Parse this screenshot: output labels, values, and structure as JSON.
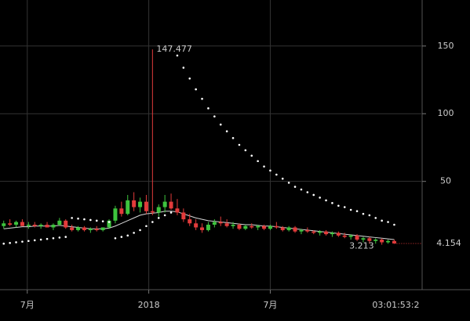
{
  "chart_data": {
    "type": "candlestick",
    "open": [
      17,
      19,
      18,
      20,
      17,
      18,
      17,
      18,
      16,
      18,
      21,
      16,
      14,
      16,
      14,
      15,
      14,
      16,
      21,
      30,
      26,
      36,
      31,
      35,
      28,
      27,
      31,
      35,
      30,
      27,
      22,
      19,
      16,
      14,
      18,
      20,
      19,
      17,
      18,
      15,
      17,
      16,
      17,
      15,
      17,
      16,
      14,
      16,
      13,
      14,
      13,
      12,
      13,
      11,
      12,
      10,
      9,
      10,
      7,
      8,
      6,
      7,
      5,
      6
    ],
    "high": [
      21,
      22,
      21,
      22,
      20,
      20,
      19,
      20,
      19,
      23,
      22,
      18,
      17,
      17,
      16,
      17,
      16,
      22,
      32,
      35,
      40,
      42,
      38,
      40,
      147.477,
      33,
      40,
      41,
      37,
      30,
      26,
      22,
      19,
      20,
      22,
      24,
      22,
      20,
      19,
      18,
      19,
      18,
      18,
      18,
      20,
      17,
      17,
      17,
      15,
      16,
      14,
      14,
      14,
      13,
      13,
      12,
      11,
      11,
      9,
      9,
      8,
      8,
      7,
      7
    ],
    "low": [
      15,
      17,
      16,
      17,
      15,
      16,
      15,
      16,
      14,
      17,
      15,
      13,
      13,
      13,
      12,
      13,
      13,
      15,
      19,
      24,
      25,
      28,
      27,
      26,
      25,
      24,
      27,
      29,
      25,
      20,
      17,
      14,
      12,
      13,
      16,
      17,
      16,
      15,
      14,
      14,
      15,
      14,
      14,
      14,
      15,
      13,
      13,
      12,
      11,
      12,
      11,
      10,
      10,
      9,
      9,
      8,
      7,
      6,
      5,
      4,
      4,
      3.213,
      4,
      4
    ],
    "close": [
      19,
      18,
      20,
      17,
      18,
      17,
      18,
      16,
      18,
      21,
      16,
      14,
      16,
      14,
      15,
      14,
      16,
      21,
      30,
      26,
      36,
      31,
      35,
      28,
      27,
      31,
      35,
      30,
      27,
      22,
      19,
      16,
      14,
      18,
      20,
      19,
      17,
      18,
      15,
      17,
      16,
      17,
      15,
      17,
      16,
      14,
      16,
      13,
      14,
      13,
      12,
      13,
      11,
      12,
      10,
      9,
      10,
      7,
      8,
      6,
      7,
      5,
      6,
      4.154
    ],
    "up_color": "#3ec43e",
    "down_color": "#e23b3b",
    "ma": {
      "color": "#d8d8d8",
      "values": [
        15,
        15.5,
        16,
        16.5,
        16.5,
        17,
        17,
        17,
        17,
        17.5,
        17,
        16.5,
        16,
        15.5,
        15,
        15,
        15,
        15.5,
        17,
        19,
        21,
        23,
        25,
        26,
        26.5,
        27,
        28,
        28,
        27.5,
        26,
        24.5,
        23,
        22,
        21,
        20.5,
        20,
        19.5,
        19,
        18.5,
        18,
        18,
        17.5,
        17,
        17,
        16.5,
        16,
        15.5,
        15,
        14.5,
        14,
        13.5,
        13,
        12.5,
        12,
        11.5,
        11,
        10.5,
        10,
        9.5,
        9,
        8.5,
        8,
        7.5,
        7
      ]
    },
    "sar": {
      "color": "#ffffff",
      "values": [
        4,
        4.5,
        5,
        5.5,
        6,
        6.5,
        7,
        7.5,
        8,
        8.5,
        9,
        23,
        22.5,
        22,
        21.5,
        21,
        20.5,
        20,
        8,
        9,
        10,
        12,
        14,
        17,
        20,
        23,
        25,
        27,
        143,
        134,
        126,
        118,
        111,
        104,
        98,
        92,
        87,
        82,
        77,
        73,
        69,
        65,
        61,
        58,
        55,
        52,
        49,
        46,
        44,
        42,
        40,
        38,
        36,
        34,
        32,
        31,
        29,
        28,
        26,
        25,
        23,
        21,
        20,
        18
      ]
    },
    "ylim": [
      -30,
      184
    ],
    "yticks": [
      50,
      100,
      150
    ],
    "xlim": [
      -0.6,
      67.5
    ],
    "xticks": [
      {
        "value": 3.8,
        "label": "7月"
      },
      {
        "value": 23.4,
        "label": "2018"
      },
      {
        "value": 43,
        "label": "7月"
      }
    ],
    "grid": true,
    "last_price_color": "#e23b3b",
    "countdown": "03:01:53:2"
  }
}
